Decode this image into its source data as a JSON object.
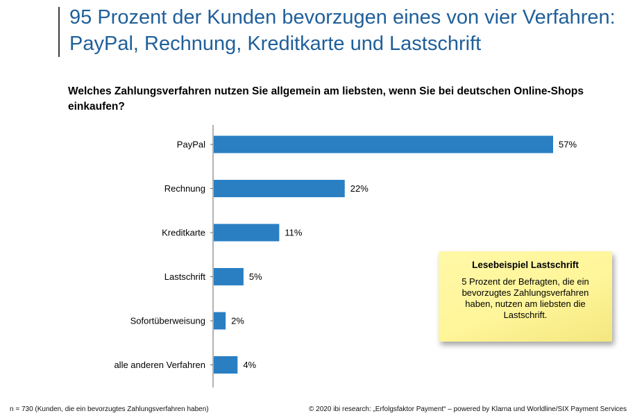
{
  "header": {
    "title_line1": "95 Prozent der Kunden bevorzugen eines von vier Verfahren:",
    "title_line2": "PayPal, Rechnung, Kreditkarte und Lastschrift"
  },
  "question": "Welches Zahlungsverfahren nutzen Sie allgemein am liebsten, wenn Sie bei deutschen Online-Shops einkaufen?",
  "chart_data": {
    "type": "bar",
    "orientation": "horizontal",
    "categories": [
      "PayPal",
      "Rechnung",
      "Kreditkarte",
      "Lastschrift",
      "Sofortüberweisung",
      "alle anderen Verfahren"
    ],
    "values": [
      57,
      22,
      11,
      5,
      2,
      4
    ],
    "value_labels": [
      "57%",
      "22%",
      "11%",
      "5%",
      "2%",
      "4%"
    ],
    "unit": "%",
    "xlim": [
      0,
      57
    ],
    "bar_color": "#2a7fc3",
    "grid": false
  },
  "note": {
    "heading": "Lesebeispiel Lastschrift",
    "body": "5 Prozent der Befragten, die ein bevorzugtes Zahlungsverfahren haben, nutzen am liebsten die Lastschrift.",
    "color": "#fff59a"
  },
  "footer": {
    "sample": "n = 730 (Kunden, die ein bevorzugtes Zahlungsverfahren haben)",
    "source": "© 2020 ibi research: „Erfolgsfaktor Payment“ – powered by Klarna und Worldline/SIX Payment Services"
  }
}
